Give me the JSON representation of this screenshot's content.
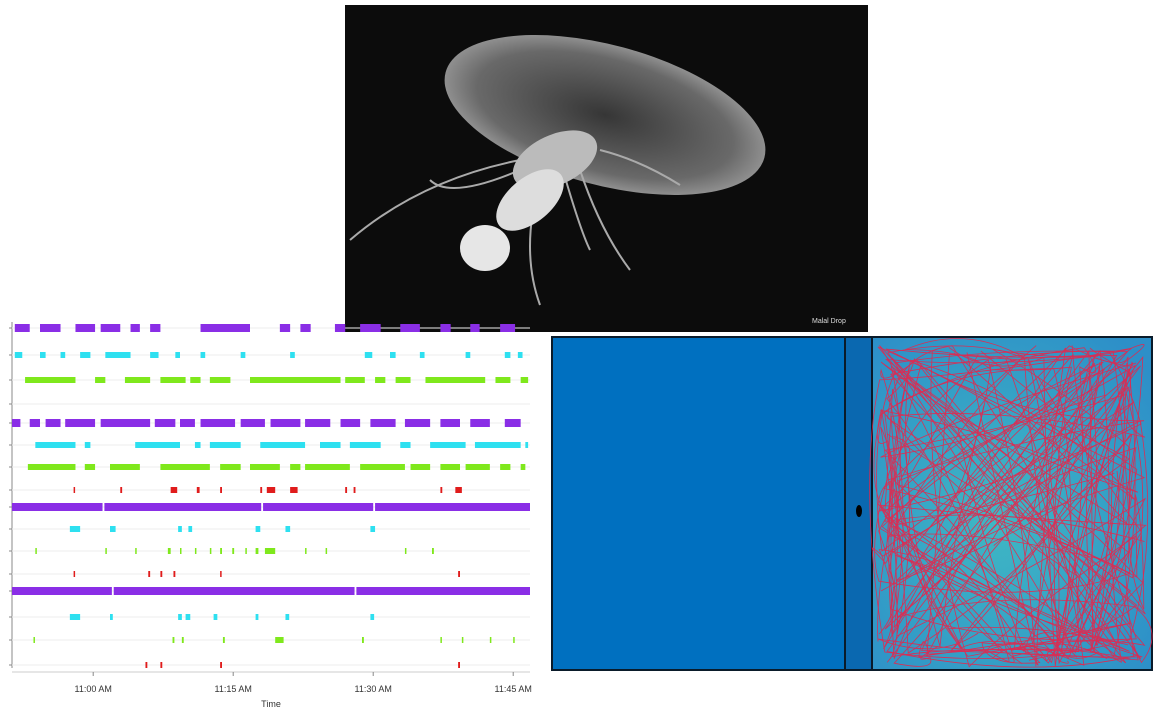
{
  "photo": {
    "caption": "Malal Drop"
  },
  "chart_data": {
    "type": "ethogram",
    "xlabel": "Time",
    "xlim": [
      -8.7,
      46.8
    ],
    "xticks": [
      {
        "value": 0,
        "label": "11:00 AM"
      },
      {
        "value": 15,
        "label": "11:15 AM"
      },
      {
        "value": 30,
        "label": "11:30 AM"
      },
      {
        "value": 45,
        "label": "11:45 AM"
      }
    ],
    "grid": true,
    "series": [
      {
        "color": "#8a2ee6",
        "intervals": [
          [
            -8.4,
            -6.8
          ],
          [
            -5.7,
            -3.5
          ],
          [
            -1.9,
            0.2
          ],
          [
            0.8,
            2.9
          ],
          [
            4.0,
            5.0
          ],
          [
            6.1,
            7.2
          ],
          [
            11.5,
            16.8
          ],
          [
            20.0,
            21.1
          ],
          [
            22.2,
            23.3
          ],
          [
            25.9,
            27.0
          ],
          [
            28.6,
            30.8
          ],
          [
            32.9,
            35.0
          ],
          [
            37.2,
            38.3
          ],
          [
            40.4,
            41.4
          ],
          [
            43.6,
            45.2
          ]
        ]
      },
      {
        "color": "#2ee0f0",
        "intervals": [
          [
            -8.4,
            -7.6
          ],
          [
            -5.7,
            -5.1
          ],
          [
            -3.5,
            -3.0
          ],
          [
            -1.4,
            -0.3
          ],
          [
            1.3,
            4.0
          ],
          [
            6.1,
            7.0
          ],
          [
            8.8,
            9.3
          ],
          [
            11.5,
            12.0
          ],
          [
            15.8,
            16.3
          ],
          [
            21.1,
            21.6
          ],
          [
            29.1,
            29.9
          ],
          [
            31.8,
            32.4
          ],
          [
            35.0,
            35.5
          ],
          [
            39.9,
            40.4
          ],
          [
            44.1,
            44.7
          ],
          [
            45.5,
            46.0
          ]
        ]
      },
      {
        "color": "#7fe81c",
        "intervals": [
          [
            -7.3,
            -1.9
          ],
          [
            0.2,
            1.3
          ],
          [
            3.4,
            6.1
          ],
          [
            7.2,
            9.9
          ],
          [
            10.4,
            11.5
          ],
          [
            12.5,
            14.7
          ],
          [
            16.8,
            26.5
          ],
          [
            27.0,
            29.1
          ],
          [
            30.2,
            31.3
          ],
          [
            32.4,
            34.0
          ],
          [
            35.6,
            42.0
          ],
          [
            43.1,
            44.7
          ],
          [
            45.8,
            46.6
          ]
        ]
      },
      {
        "color": "#e01c1c",
        "intervals": []
      },
      {
        "color": "#8a2ee6",
        "intervals": [
          [
            -8.7,
            -7.8
          ],
          [
            -6.8,
            -5.7
          ],
          [
            -5.1,
            -3.5
          ],
          [
            -3.0,
            0.2
          ],
          [
            0.8,
            6.1
          ],
          [
            6.6,
            8.8
          ],
          [
            9.3,
            10.9
          ],
          [
            11.5,
            15.2
          ],
          [
            15.8,
            18.4
          ],
          [
            19.0,
            22.2
          ],
          [
            22.7,
            25.4
          ],
          [
            26.5,
            28.6
          ],
          [
            29.7,
            32.4
          ],
          [
            33.4,
            36.1
          ],
          [
            37.2,
            39.3
          ],
          [
            40.4,
            42.5
          ],
          [
            44.1,
            45.8
          ]
        ]
      },
      {
        "color": "#2ee0f0",
        "intervals": [
          [
            -6.2,
            -1.9
          ],
          [
            -0.9,
            -0.3
          ],
          [
            4.5,
            9.3
          ],
          [
            10.9,
            11.5
          ],
          [
            12.5,
            15.8
          ],
          [
            17.9,
            22.7
          ],
          [
            24.3,
            26.5
          ],
          [
            27.5,
            30.8
          ],
          [
            32.9,
            34.0
          ],
          [
            36.1,
            39.9
          ],
          [
            40.9,
            45.8
          ],
          [
            46.3,
            46.6
          ]
        ]
      },
      {
        "color": "#7fe81c",
        "intervals": [
          [
            -7.0,
            -1.9
          ],
          [
            -0.9,
            0.2
          ],
          [
            1.8,
            5.0
          ],
          [
            7.2,
            12.5
          ],
          [
            13.6,
            15.8
          ],
          [
            16.8,
            20.0
          ],
          [
            21.1,
            22.2
          ],
          [
            22.7,
            27.5
          ],
          [
            28.6,
            33.4
          ],
          [
            34.0,
            36.1
          ],
          [
            37.2,
            39.3
          ],
          [
            39.9,
            42.5
          ],
          [
            43.6,
            44.7
          ],
          [
            45.8,
            46.3
          ]
        ]
      },
      {
        "color": "#e01c1c",
        "intervals": [
          [
            -2.1,
            -2.0
          ],
          [
            2.9,
            3.1
          ],
          [
            8.3,
            9.0
          ],
          [
            11.1,
            11.4
          ],
          [
            13.6,
            13.8
          ],
          [
            17.9,
            18.1
          ],
          [
            18.6,
            19.5
          ],
          [
            21.1,
            21.9
          ],
          [
            27.0,
            27.2
          ],
          [
            27.9,
            28.1
          ],
          [
            37.2,
            37.4
          ],
          [
            38.8,
            39.5
          ]
        ]
      },
      {
        "color": "#8a2ee6",
        "intervals": [
          [
            -8.7,
            1.0
          ],
          [
            1.2,
            18.0
          ],
          [
            18.2,
            30.0
          ],
          [
            30.2,
            46.8
          ]
        ]
      },
      {
        "color": "#2ee0f0",
        "intervals": [
          [
            -2.5,
            -1.4
          ],
          [
            1.8,
            2.4
          ],
          [
            9.1,
            9.5
          ],
          [
            10.2,
            10.6
          ],
          [
            17.4,
            17.9
          ],
          [
            20.6,
            21.1
          ],
          [
            29.7,
            30.2
          ]
        ]
      },
      {
        "color": "#7fe81c",
        "intervals": [
          [
            -6.2,
            -6.1
          ],
          [
            1.3,
            1.4
          ],
          [
            4.5,
            4.6
          ],
          [
            8.0,
            8.3
          ],
          [
            9.3,
            9.4
          ],
          [
            10.9,
            11.0
          ],
          [
            12.5,
            12.6
          ],
          [
            13.6,
            13.8
          ],
          [
            14.9,
            15.1
          ],
          [
            16.3,
            16.4
          ],
          [
            17.4,
            17.7
          ],
          [
            18.4,
            19.5
          ],
          [
            22.7,
            22.8
          ],
          [
            24.9,
            25.0
          ],
          [
            33.4,
            33.5
          ],
          [
            36.3,
            36.5
          ]
        ]
      },
      {
        "color": "#e01c1c",
        "intervals": [
          [
            -2.1,
            -2.0
          ],
          [
            5.9,
            6.1
          ],
          [
            7.2,
            7.4
          ],
          [
            8.6,
            8.8
          ],
          [
            13.6,
            13.7
          ],
          [
            39.1,
            39.3
          ]
        ]
      },
      {
        "color": "#8a2ee6",
        "intervals": [
          [
            -8.7,
            2.0
          ],
          [
            2.2,
            28.0
          ],
          [
            28.2,
            46.8
          ]
        ]
      },
      {
        "color": "#2ee0f0",
        "intervals": [
          [
            -2.5,
            -1.4
          ],
          [
            1.8,
            2.1
          ],
          [
            9.1,
            9.5
          ],
          [
            9.9,
            10.4
          ],
          [
            12.9,
            13.3
          ],
          [
            17.4,
            17.7
          ],
          [
            20.6,
            21.0
          ],
          [
            29.7,
            30.1
          ]
        ]
      },
      {
        "color": "#7fe81c",
        "intervals": [
          [
            -6.4,
            -6.3
          ],
          [
            8.5,
            8.7
          ],
          [
            9.5,
            9.7
          ],
          [
            13.9,
            14.1
          ],
          [
            19.5,
            20.4
          ],
          [
            28.8,
            29.0
          ],
          [
            37.2,
            37.3
          ],
          [
            39.5,
            39.6
          ],
          [
            42.5,
            42.6
          ],
          [
            45.0,
            45.1
          ]
        ]
      },
      {
        "color": "#e01c1c",
        "intervals": [
          [
            5.6,
            5.8
          ],
          [
            7.2,
            7.4
          ],
          [
            13.6,
            13.8
          ],
          [
            39.1,
            39.3
          ]
        ]
      }
    ]
  }
}
